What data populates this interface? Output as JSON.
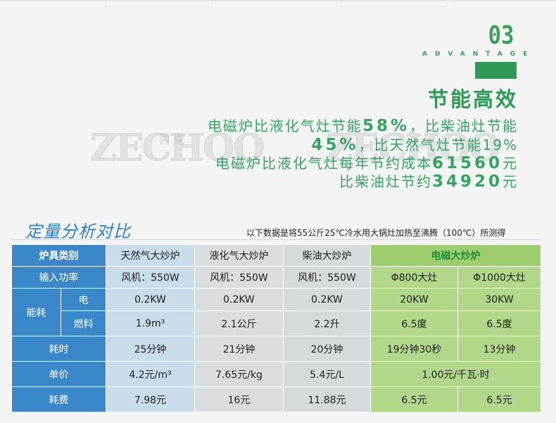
{
  "badge": {
    "number": "03",
    "subtitle": "ADVANTAGE"
  },
  "headline": "节能高效",
  "paragraph": {
    "l1_a": "电磁炉比液化气灶节能",
    "l1_b": "58%",
    "l1_c": "，比柴油灶节能",
    "l2_a": "45%",
    "l2_b": "，比天然气灶节能19%",
    "l3_a": "电磁炉比液化气灶每年节约成本",
    "l3_b": "61560",
    "l3_c": "元",
    "l4_a": "比柴油灶节约",
    "l4_b": "34920",
    "l4_c": "元"
  },
  "watermark": {
    "logo": "ZECHOO",
    "cn": "哲克"
  },
  "section": {
    "title": "定量分析对比",
    "note": "以下数据是将55公斤25℃冷水用大锅灶加热至沸腾（100℃）所测得"
  },
  "table": {
    "header": [
      "炉具类别",
      "天然气大炒炉",
      "液化气大炒炉",
      "柴油大炒炉",
      "电磁大炒炉"
    ],
    "power": {
      "label": "输入功率",
      "gas": "风机：550W",
      "lpg": "风机：550W",
      "diesel": "风机：550W",
      "ind1": "Φ800大灶",
      "ind2": "Φ1000大灶"
    },
    "energy_label": "能耗",
    "electric": {
      "label": "电",
      "gas": "0.2KW",
      "lpg": "0.2KW",
      "diesel": "0.2KW",
      "ind1": "20KW",
      "ind2": "30KW"
    },
    "fuel": {
      "label": "燃料",
      "gas": "1.9m³",
      "lpg": "2.1公斤",
      "diesel": "2.2升",
      "ind1": "6.5度",
      "ind2": "6.5度"
    },
    "time": {
      "label": "耗时",
      "gas": "25分钟",
      "lpg": "21分钟",
      "diesel": "20分钟",
      "ind1": "19分钟30秒",
      "ind2": "13分钟"
    },
    "price": {
      "label": "单价",
      "gas": "4.2元/m³",
      "lpg": "7.65元/kg",
      "diesel": "5.4元/L",
      "ind": "1.00元/千瓦·时"
    },
    "cost": {
      "label": "耗费",
      "gas": "7.98元",
      "lpg": "16元",
      "diesel": "11.88元",
      "ind1": "6.5元",
      "ind2": "6.5元"
    }
  },
  "colors": {
    "green": "#2f9a55",
    "blue_header": "#3a87c9",
    "title_blue": "#2a7fcf",
    "induction_green": "#b1d888"
  }
}
